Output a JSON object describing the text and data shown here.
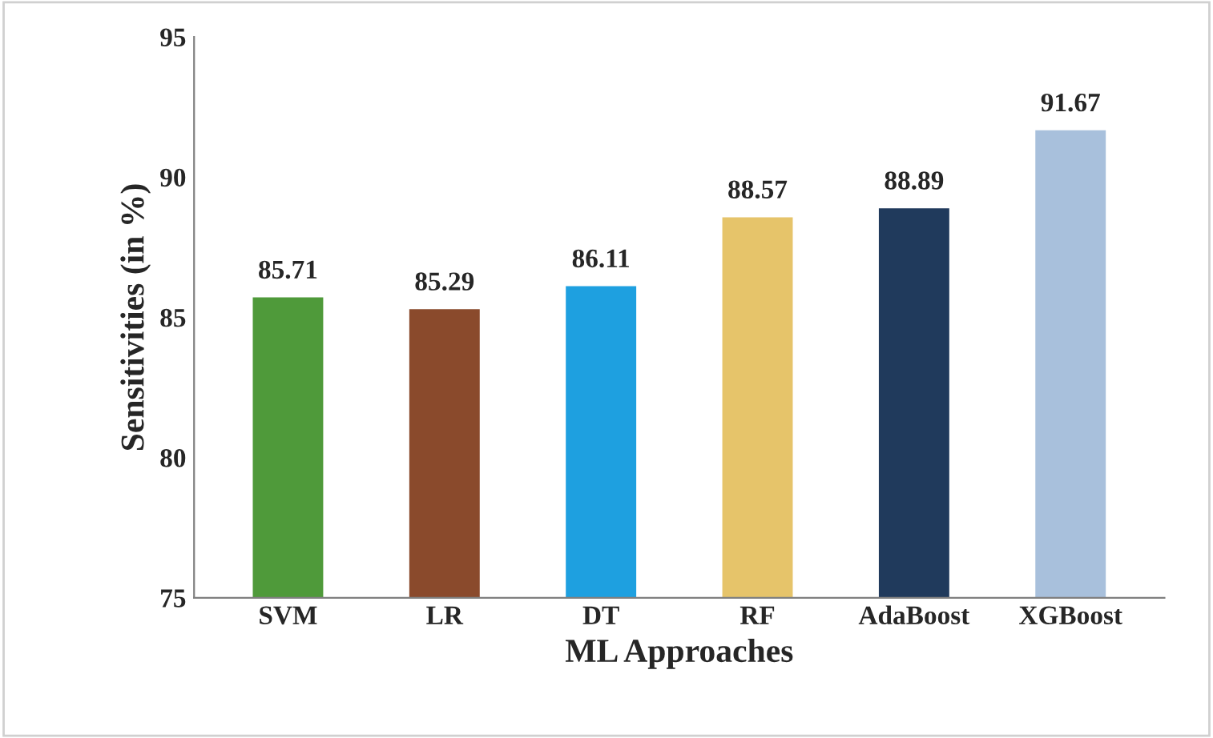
{
  "chart_data": {
    "type": "bar",
    "xlabel": "ML Approaches",
    "ylabel": "Sensitivities (in %)",
    "categories": [
      "SVM",
      "LR",
      "DT",
      "RF",
      "AdaBoost",
      "XGBoost"
    ],
    "values": [
      85.71,
      85.29,
      86.11,
      88.57,
      88.89,
      91.67
    ],
    "colors": [
      "#4f9a3a",
      "#8a4a2c",
      "#1ea0e0",
      "#e6c46a",
      "#203a5c",
      "#a8c0dc"
    ],
    "ylim": [
      75,
      95
    ],
    "yticks": [
      75,
      80,
      85,
      90,
      95
    ],
    "grid": false,
    "data_labels": true
  }
}
